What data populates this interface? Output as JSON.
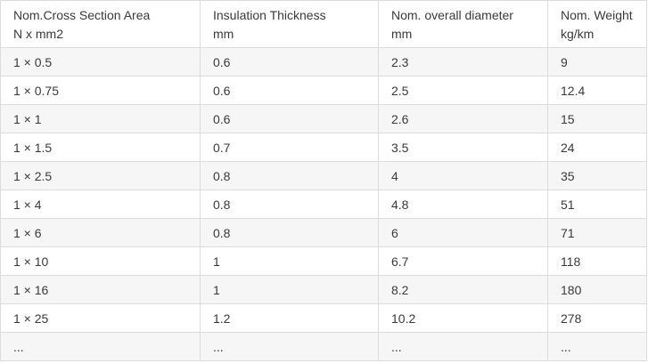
{
  "table": {
    "headers": [
      {
        "line1": "Nom.Cross Section Area",
        "line2": "N x mm2"
      },
      {
        "line1": "Insulation Thickness",
        "line2": "mm"
      },
      {
        "line1": "Nom. overall diameter",
        "line2": "mm"
      },
      {
        "line1": "Nom. Weight",
        "line2": "kg/km"
      }
    ],
    "rows": [
      [
        "1 × 0.5",
        "0.6",
        "2.3",
        "9"
      ],
      [
        "1 × 0.75",
        "0.6",
        "2.5",
        "12.4"
      ],
      [
        "1 × 1",
        "0.6",
        "2.6",
        "15"
      ],
      [
        "1 × 1.5",
        "0.7",
        "3.5",
        "24"
      ],
      [
        "1 × 2.5",
        "0.8",
        "4",
        "35"
      ],
      [
        "1 × 4",
        "0.8",
        "4.8",
        "51"
      ],
      [
        "1 × 6",
        "0.8",
        "6",
        "71"
      ],
      [
        "1 × 10",
        "1",
        "6.7",
        "118"
      ],
      [
        "1 × 16",
        "1",
        "8.2",
        "180"
      ],
      [
        "1 × 25",
        "1.2",
        "10.2",
        "278"
      ],
      [
        "...",
        "...",
        "...",
        "..."
      ]
    ]
  }
}
